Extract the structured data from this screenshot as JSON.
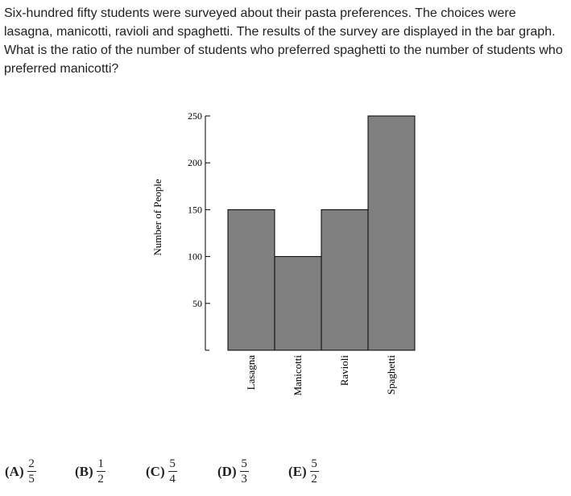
{
  "question": {
    "text": "Six-hundred fifty students were surveyed about their pasta preferences. The choices were lasagna, manicotti, ravioli and spaghetti. The results of the survey are displayed in the bar graph. What is the ratio of the number of students who preferred spaghetti to the number of students who preferred manicotti?"
  },
  "chart_data": {
    "type": "bar",
    "categories": [
      "Lasagna",
      "Manicotti",
      "Ravioli",
      "Spaghetti"
    ],
    "values": [
      150,
      100,
      150,
      250
    ],
    "ylabel": "Number of People",
    "xlabel": "",
    "title": "",
    "ylim": [
      0,
      250
    ],
    "yticks": [
      50,
      100,
      150,
      200,
      250
    ],
    "bar_color": "#808080",
    "grid": false
  },
  "choices": [
    {
      "label": "(A)",
      "num": "2",
      "den": "5"
    },
    {
      "label": "(B)",
      "num": "1",
      "den": "2"
    },
    {
      "label": "(C)",
      "num": "5",
      "den": "4"
    },
    {
      "label": "(D)",
      "num": "5",
      "den": "3"
    },
    {
      "label": "(E)",
      "num": "5",
      "den": "2"
    }
  ]
}
